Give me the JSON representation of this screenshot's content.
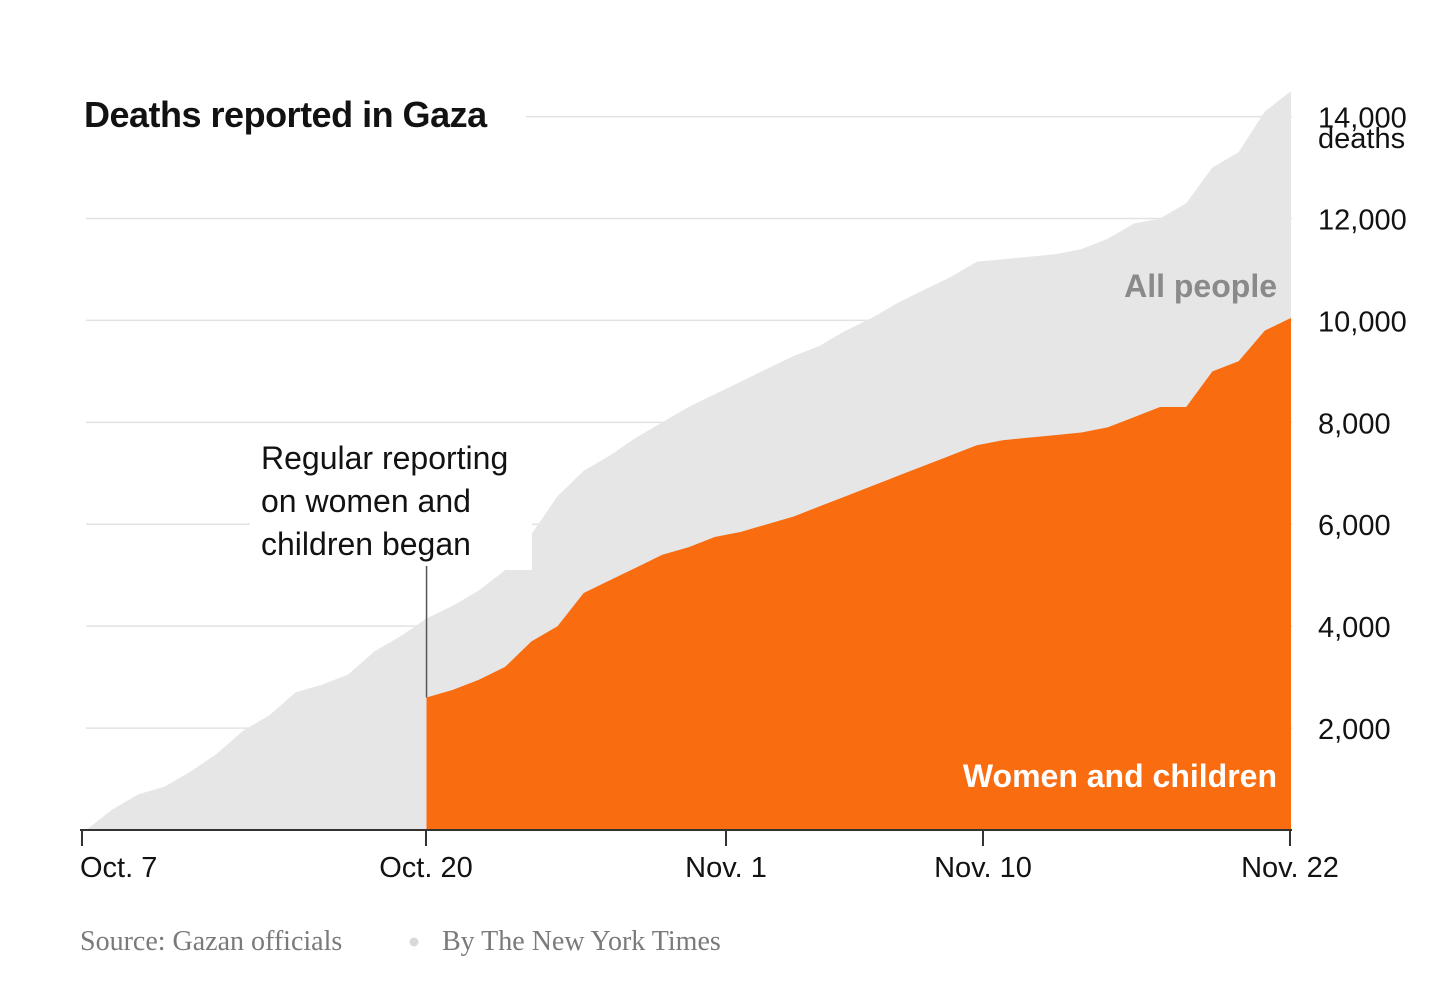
{
  "chart_data": {
    "type": "area",
    "title": "Deaths reported in Gaza",
    "x_ticks": [
      "Oct. 7",
      "Oct. 20",
      "Nov. 1",
      "Nov. 10",
      "Nov. 22"
    ],
    "y_ticks": [
      2000,
      4000,
      6000,
      8000,
      10000,
      12000,
      14000
    ],
    "y_tick_labels": [
      "2,000",
      "4,000",
      "6,000",
      "8,000",
      "10,000",
      "12,000",
      "14,000"
    ],
    "y_unit_label": "deaths",
    "ylim": [
      0,
      14600
    ],
    "grid": true,
    "series": [
      {
        "name": "All people",
        "color": "#e6e6e6",
        "points": [
          [
            "2023-10-07",
            0
          ],
          [
            "2023-10-08",
            400
          ],
          [
            "2023-10-09",
            700
          ],
          [
            "2023-10-10",
            850
          ],
          [
            "2023-10-11",
            1150
          ],
          [
            "2023-10-12",
            1500
          ],
          [
            "2023-10-13",
            1950
          ],
          [
            "2023-10-14",
            2250
          ],
          [
            "2023-10-15",
            2700
          ],
          [
            "2023-10-16",
            2850
          ],
          [
            "2023-10-17",
            3050
          ],
          [
            "2023-10-18",
            3500
          ],
          [
            "2023-10-19",
            3800
          ],
          [
            "2023-10-20",
            4150
          ],
          [
            "2023-10-21",
            4400
          ],
          [
            "2023-10-22",
            4700
          ],
          [
            "2023-10-23",
            5100
          ],
          [
            "2023-10-24",
            5800
          ],
          [
            "2023-10-25",
            6550
          ],
          [
            "2023-10-26",
            7050
          ],
          [
            "2023-10-27",
            7350
          ],
          [
            "2023-10-28",
            7700
          ],
          [
            "2023-10-29",
            8000
          ],
          [
            "2023-10-30",
            8300
          ],
          [
            "2023-10-31",
            8550
          ],
          [
            "2023-11-01",
            8800
          ],
          [
            "2023-11-02",
            9050
          ],
          [
            "2023-11-03",
            9300
          ],
          [
            "2023-11-04",
            9500
          ],
          [
            "2023-11-05",
            9800
          ],
          [
            "2023-11-06",
            10050
          ],
          [
            "2023-11-07",
            10350
          ],
          [
            "2023-11-08",
            10600
          ],
          [
            "2023-11-09",
            10850
          ],
          [
            "2023-11-10",
            11150
          ],
          [
            "2023-11-11",
            11200
          ],
          [
            "2023-11-12",
            11250
          ],
          [
            "2023-11-13",
            11300
          ],
          [
            "2023-11-14",
            11400
          ],
          [
            "2023-11-15",
            11600
          ],
          [
            "2023-11-16",
            11900
          ],
          [
            "2023-11-17",
            12000
          ],
          [
            "2023-11-18",
            12300
          ],
          [
            "2023-11-19",
            13000
          ],
          [
            "2023-11-20",
            13300
          ],
          [
            "2023-11-21",
            14100
          ],
          [
            "2023-11-22",
            14500
          ]
        ]
      },
      {
        "name": "Women and children",
        "color": "#fa6c10",
        "points": [
          [
            "2023-10-20",
            2600
          ],
          [
            "2023-10-21",
            2750
          ],
          [
            "2023-10-22",
            2950
          ],
          [
            "2023-10-23",
            3200
          ],
          [
            "2023-10-24",
            3700
          ],
          [
            "2023-10-25",
            4000
          ],
          [
            "2023-10-26",
            4650
          ],
          [
            "2023-10-27",
            4900
          ],
          [
            "2023-10-28",
            5150
          ],
          [
            "2023-10-29",
            5400
          ],
          [
            "2023-10-30",
            5550
          ],
          [
            "2023-10-31",
            5750
          ],
          [
            "2023-11-01",
            5850
          ],
          [
            "2023-11-02",
            6000
          ],
          [
            "2023-11-03",
            6150
          ],
          [
            "2023-11-04",
            6350
          ],
          [
            "2023-11-05",
            6550
          ],
          [
            "2023-11-06",
            6750
          ],
          [
            "2023-11-07",
            6950
          ],
          [
            "2023-11-08",
            7150
          ],
          [
            "2023-11-09",
            7350
          ],
          [
            "2023-11-10",
            7550
          ],
          [
            "2023-11-11",
            7650
          ],
          [
            "2023-11-12",
            7700
          ],
          [
            "2023-11-13",
            7750
          ],
          [
            "2023-11-14",
            7800
          ],
          [
            "2023-11-15",
            7900
          ],
          [
            "2023-11-16",
            8100
          ],
          [
            "2023-11-17",
            8300
          ],
          [
            "2023-11-18",
            8300
          ],
          [
            "2023-11-19",
            9000
          ],
          [
            "2023-11-20",
            9200
          ],
          [
            "2023-11-21",
            9800
          ],
          [
            "2023-11-22",
            10050
          ]
        ]
      }
    ],
    "annotation": {
      "lines": [
        "Regular reporting",
        "on women and",
        "children began"
      ],
      "date": "2023-10-20"
    }
  },
  "footer": {
    "source": "Source: Gazan officials",
    "byline": "By The New York Times"
  }
}
